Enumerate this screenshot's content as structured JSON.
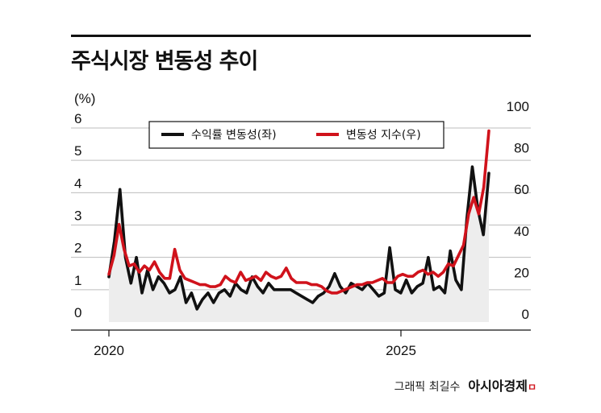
{
  "title": "주식시장 변동성 추이",
  "credit": {
    "author": "그래픽 최길수",
    "brand": "아시아경제",
    "brand_mark": "ㅁ"
  },
  "colors": {
    "left_series": "#111111",
    "right_series": "#d0121b",
    "area": "#ededed",
    "grid": "#bdbdbd"
  },
  "chart_data": {
    "type": "line",
    "y_left_unit": "(%)",
    "y_left_lim": [
      0,
      6
    ],
    "y_left_ticks": [
      "0",
      "1",
      "2",
      "3",
      "4",
      "5",
      "6"
    ],
    "y_right_lim": [
      0,
      100
    ],
    "y_right_ticks": [
      "0",
      "20",
      "40",
      "60",
      "80",
      "100"
    ],
    "x_ticks": [
      "2020",
      "2025"
    ],
    "legend": [
      "수익률 변동성(좌)",
      "변동성 지수(우)"
    ],
    "series": [
      {
        "name": "수익률 변동성(좌)",
        "axis": "left",
        "values": [
          1.4,
          2.5,
          4.1,
          2.0,
          1.2,
          2.0,
          0.9,
          1.6,
          1.0,
          1.4,
          1.2,
          0.9,
          1.0,
          1.4,
          0.6,
          0.9,
          0.4,
          0.7,
          0.9,
          0.6,
          0.9,
          1.0,
          0.8,
          1.2,
          1.0,
          0.9,
          1.4,
          1.1,
          0.9,
          1.2,
          1.0,
          1.0,
          1.0,
          1.0,
          0.9,
          0.8,
          0.7,
          0.6,
          0.8,
          0.9,
          1.1,
          1.5,
          1.1,
          0.9,
          1.2,
          1.1,
          1.0,
          1.2,
          1.0,
          0.8,
          0.9,
          2.3,
          1.0,
          0.9,
          1.3,
          0.9,
          1.1,
          1.2,
          2.0,
          1.0,
          1.1,
          0.9,
          2.2,
          1.3,
          1.0,
          3.2,
          4.8,
          3.5,
          2.7,
          4.6
        ]
      },
      {
        "name": "변동성 지수(우)",
        "axis": "right",
        "values": [
          23,
          32,
          47,
          35,
          27,
          28,
          24,
          27,
          25,
          29,
          24,
          21,
          21,
          35,
          25,
          21,
          20,
          19,
          18,
          18,
          17,
          17,
          18,
          22,
          20,
          19,
          24,
          20,
          21,
          22,
          20,
          24,
          22,
          21,
          22,
          26,
          21,
          19,
          19,
          19,
          18,
          18,
          17,
          15,
          14,
          14,
          15,
          16,
          17,
          18,
          18,
          19,
          19,
          20,
          21,
          19,
          19,
          22,
          23,
          22,
          22,
          24,
          25,
          23,
          24,
          22,
          24,
          28,
          27,
          32,
          37,
          52,
          60,
          52,
          65,
          92
        ]
      }
    ]
  }
}
